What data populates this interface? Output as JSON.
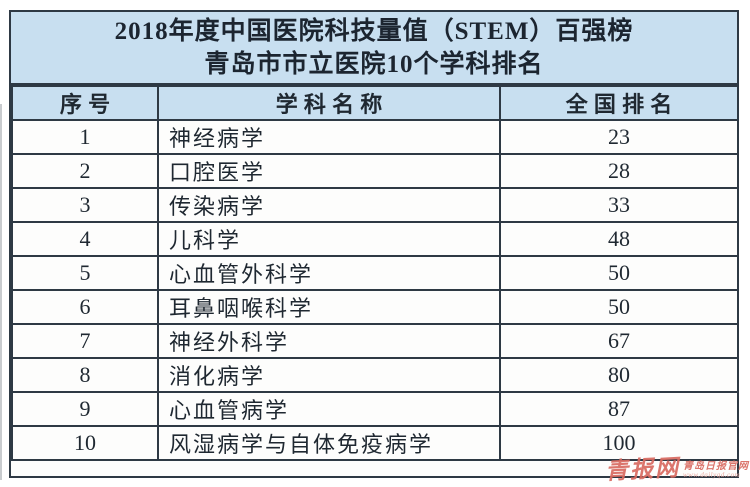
{
  "chart_data": {
    "type": "table",
    "title": "2018年度中国医院科技量值（STEM）百强榜",
    "subtitle": "青岛市市立医院10个学科排名",
    "columns": [
      "序号",
      "学科名称",
      "全国排名"
    ],
    "rows": [
      {
        "no": "1",
        "discipline": "神经病学",
        "rank": "23"
      },
      {
        "no": "2",
        "discipline": "口腔医学",
        "rank": "28"
      },
      {
        "no": "3",
        "discipline": "传染病学",
        "rank": "33"
      },
      {
        "no": "4",
        "discipline": "儿科学",
        "rank": "48"
      },
      {
        "no": "5",
        "discipline": "心血管外科学",
        "rank": "50"
      },
      {
        "no": "6",
        "discipline": "耳鼻咽喉科学",
        "rank": "50"
      },
      {
        "no": "7",
        "discipline": "神经外科学",
        "rank": "67"
      },
      {
        "no": "8",
        "discipline": "消化病学",
        "rank": "80"
      },
      {
        "no": "9",
        "discipline": "心血管病学",
        "rank": "87"
      },
      {
        "no": "10",
        "discipline": "风湿病学与自体免疫病学",
        "rank": "100"
      }
    ],
    "layout": {
      "header_rows": 2,
      "grid": true,
      "legend_position": "none"
    }
  },
  "watermark": {
    "logo": "青报网",
    "caption": "青岛日报官网",
    "url": "www.dailyqd.com"
  },
  "colors": {
    "header_bg": "#c8dff0",
    "row_bg": "#fdfdfc",
    "border": "#2e3944",
    "text": "#1f2831",
    "watermark_red": "#d96a60"
  }
}
